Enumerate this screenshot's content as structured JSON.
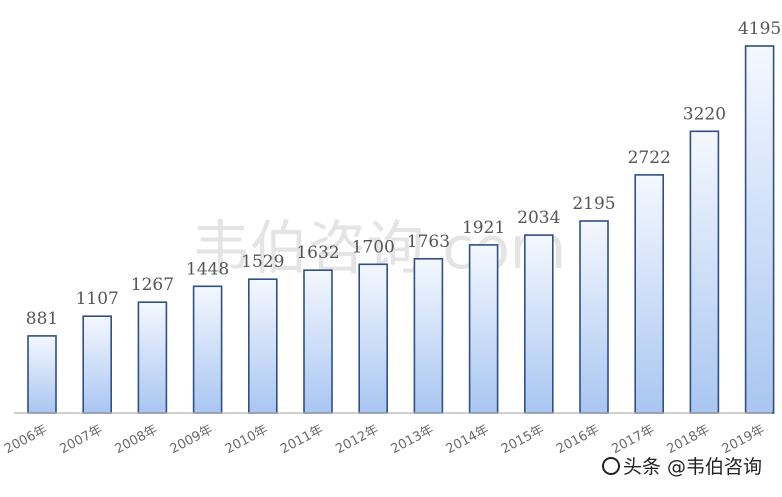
{
  "chart_data": {
    "type": "bar",
    "categories": [
      "2006年",
      "2007年",
      "2008年",
      "2009年",
      "2010年",
      "2011年",
      "2012年",
      "2013年",
      "2014年",
      "2015年",
      "2016年",
      "2017年",
      "2018年",
      "2019年"
    ],
    "values": [
      881,
      1107,
      1267,
      1448,
      1529,
      1632,
      1700,
      1763,
      1921,
      2034,
      2195,
      2722,
      3220,
      4195
    ],
    "title": "",
    "xlabel": "",
    "ylabel": "",
    "ylim": [
      0,
      4300
    ],
    "grid": false,
    "legend": "none",
    "bar_color": "#c9dcf7",
    "bar_edge_color": "#2f4f86"
  },
  "watermark": "韦伯咨询.com",
  "source_badge": "头条 @韦伯咨询"
}
